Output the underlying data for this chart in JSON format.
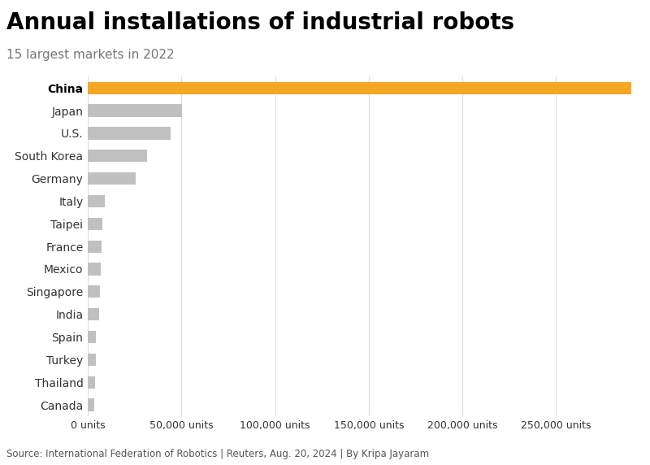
{
  "title": "Annual installations of industrial robots",
  "subtitle": "15 largest markets in 2022",
  "source": "Source: International Federation of Robotics | Reuters, Aug. 20, 2024 | By Kripa Jayaram",
  "countries": [
    "China",
    "Japan",
    "U.S.",
    "South Korea",
    "Germany",
    "Italy",
    "Taipei",
    "France",
    "Mexico",
    "Singapore",
    "India",
    "Spain",
    "Turkey",
    "Thailand",
    "Canada"
  ],
  "values": [
    290258,
    50413,
    44196,
    31716,
    25636,
    9000,
    8000,
    7500,
    7000,
    6500,
    6000,
    4500,
    4200,
    3900,
    3500
  ],
  "colors": [
    "#F5A623",
    "#C0C0C0",
    "#C0C0C0",
    "#C0C0C0",
    "#C0C0C0",
    "#C0C0C0",
    "#C0C0C0",
    "#C0C0C0",
    "#C0C0C0",
    "#C0C0C0",
    "#C0C0C0",
    "#C0C0C0",
    "#C0C0C0",
    "#C0C0C0",
    "#C0C0C0"
  ],
  "xlim": [
    0,
    295000
  ],
  "xticks": [
    0,
    50000,
    100000,
    150000,
    200000,
    250000
  ],
  "xtick_labels": [
    "0 units",
    "50,000 units",
    "100,000 units",
    "150,000 units",
    "200,000 units",
    "250,000 units"
  ],
  "bar_height": 0.55,
  "background_color": "#FFFFFF",
  "title_fontsize": 20,
  "subtitle_fontsize": 11,
  "label_fontsize": 10,
  "tick_fontsize": 9,
  "source_fontsize": 8.5,
  "grid_color": "#DDDDDD",
  "label_color": "#333333",
  "source_color": "#555555"
}
